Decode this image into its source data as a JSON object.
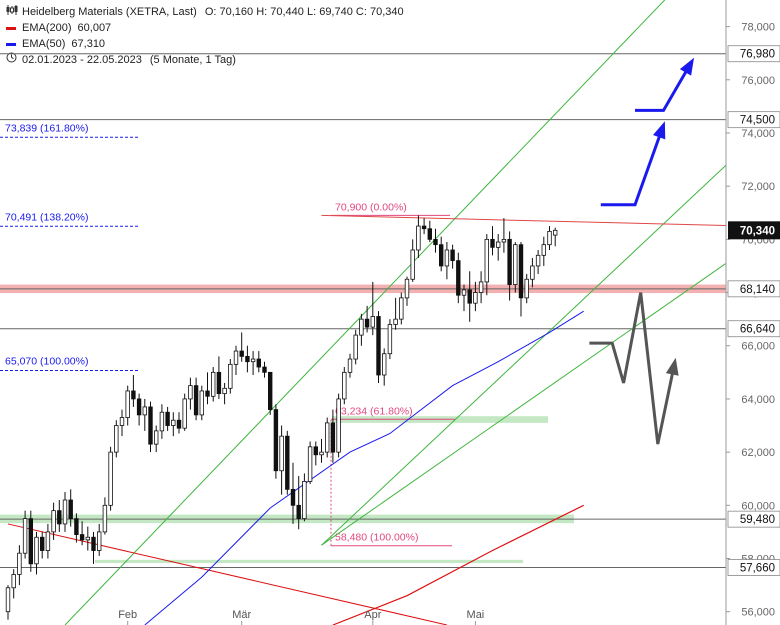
{
  "legend": {
    "instrument": "Heidelberg Materials (XETRA, Last)",
    "ohlc": "O: 70,160  H: 70,440  L: 69,740  C: 70,340",
    "ema200": {
      "label": "EMA(200)",
      "value": "60,007",
      "color": "#dd1111"
    },
    "ema50": {
      "label": "EMA(50)",
      "value": "67,310",
      "color": "#1a1aee"
    },
    "period": "02.01.2023 - 22.05.2023",
    "period_note": "(5 Monate, 1 Tag)"
  },
  "chart_data": {
    "type": "candlestick",
    "ylim": [
      55.5,
      79
    ],
    "yticks": [
      56,
      58,
      60,
      62,
      64,
      66,
      68,
      70,
      72,
      74,
      76,
      78
    ],
    "ytick_labels": [
      "56,000",
      "58,000",
      "60,000",
      "62,000",
      "64,000",
      "66,000",
      "68,000",
      "70,000",
      "72,000",
      "74,000",
      "76,000",
      "78,000"
    ],
    "xlabels": [
      {
        "label": "Feb",
        "day": 21
      },
      {
        "label": "Mär",
        "day": 41
      },
      {
        "label": "Apr",
        "day": 64
      },
      {
        "label": "Mai",
        "day": 82
      }
    ],
    "last_price": {
      "value": 70.34,
      "label": "70,340"
    },
    "candles": [
      {
        "o": 56.0,
        "h": 57.0,
        "l": 55.7,
        "c": 56.9
      },
      {
        "o": 56.9,
        "h": 57.6,
        "l": 56.5,
        "c": 57.4
      },
      {
        "o": 57.4,
        "h": 58.5,
        "l": 57.0,
        "c": 58.2
      },
      {
        "o": 58.2,
        "h": 59.8,
        "l": 58.0,
        "c": 59.5
      },
      {
        "o": 59.5,
        "h": 59.8,
        "l": 57.5,
        "c": 57.8
      },
      {
        "o": 57.8,
        "h": 59.0,
        "l": 57.4,
        "c": 58.8
      },
      {
        "o": 58.8,
        "h": 59.0,
        "l": 58.0,
        "c": 58.3
      },
      {
        "o": 58.3,
        "h": 59.3,
        "l": 58.0,
        "c": 59.0
      },
      {
        "o": 59.0,
        "h": 60.1,
        "l": 58.7,
        "c": 59.8
      },
      {
        "o": 59.8,
        "h": 60.2,
        "l": 59.0,
        "c": 59.3
      },
      {
        "o": 59.3,
        "h": 60.5,
        "l": 59.0,
        "c": 60.2
      },
      {
        "o": 60.2,
        "h": 60.6,
        "l": 59.2,
        "c": 59.5
      },
      {
        "o": 59.5,
        "h": 59.7,
        "l": 58.6,
        "c": 58.9
      },
      {
        "o": 58.9,
        "h": 59.4,
        "l": 58.5,
        "c": 58.7
      },
      {
        "o": 58.7,
        "h": 59.2,
        "l": 58.3,
        "c": 58.8
      },
      {
        "o": 58.8,
        "h": 59.0,
        "l": 57.8,
        "c": 58.3
      },
      {
        "o": 58.3,
        "h": 59.3,
        "l": 58.1,
        "c": 59.0
      },
      {
        "o": 59.0,
        "h": 60.3,
        "l": 58.9,
        "c": 60.0
      },
      {
        "o": 60.0,
        "h": 62.2,
        "l": 59.8,
        "c": 62.0
      },
      {
        "o": 62.0,
        "h": 63.2,
        "l": 61.8,
        "c": 63.0
      },
      {
        "o": 63.0,
        "h": 63.6,
        "l": 62.6,
        "c": 63.3
      },
      {
        "o": 63.3,
        "h": 64.5,
        "l": 63.0,
        "c": 64.3
      },
      {
        "o": 64.3,
        "h": 64.9,
        "l": 63.7,
        "c": 64.0
      },
      {
        "o": 64.0,
        "h": 64.2,
        "l": 63.0,
        "c": 63.4
      },
      {
        "o": 63.4,
        "h": 64.0,
        "l": 62.8,
        "c": 63.7
      },
      {
        "o": 63.7,
        "h": 63.9,
        "l": 62.0,
        "c": 62.3
      },
      {
        "o": 62.3,
        "h": 63.0,
        "l": 62.0,
        "c": 62.8
      },
      {
        "o": 62.8,
        "h": 63.8,
        "l": 62.5,
        "c": 63.5
      },
      {
        "o": 63.5,
        "h": 63.7,
        "l": 62.8,
        "c": 63.0
      },
      {
        "o": 63.0,
        "h": 63.5,
        "l": 62.6,
        "c": 63.2
      },
      {
        "o": 63.2,
        "h": 63.5,
        "l": 62.7,
        "c": 62.9
      },
      {
        "o": 62.9,
        "h": 64.2,
        "l": 62.8,
        "c": 64.0
      },
      {
        "o": 64.0,
        "h": 64.8,
        "l": 63.6,
        "c": 64.5
      },
      {
        "o": 64.5,
        "h": 64.8,
        "l": 63.2,
        "c": 63.4
      },
      {
        "o": 63.4,
        "h": 64.5,
        "l": 63.2,
        "c": 64.3
      },
      {
        "o": 64.3,
        "h": 65.0,
        "l": 63.8,
        "c": 64.1
      },
      {
        "o": 64.1,
        "h": 65.2,
        "l": 63.9,
        "c": 65.0
      },
      {
        "o": 65.0,
        "h": 65.6,
        "l": 64.0,
        "c": 64.2
      },
      {
        "o": 64.2,
        "h": 64.6,
        "l": 63.8,
        "c": 64.4
      },
      {
        "o": 64.4,
        "h": 65.5,
        "l": 64.2,
        "c": 65.3
      },
      {
        "o": 65.3,
        "h": 66.0,
        "l": 64.9,
        "c": 65.8
      },
      {
        "o": 65.8,
        "h": 66.5,
        "l": 65.4,
        "c": 65.6
      },
      {
        "o": 65.6,
        "h": 66.0,
        "l": 65.0,
        "c": 65.4
      },
      {
        "o": 65.4,
        "h": 65.8,
        "l": 64.9,
        "c": 65.5
      },
      {
        "o": 65.5,
        "h": 65.8,
        "l": 65.0,
        "c": 65.2
      },
      {
        "o": 65.2,
        "h": 65.4,
        "l": 64.8,
        "c": 65.0
      },
      {
        "o": 65.0,
        "h": 64.9,
        "l": 63.4,
        "c": 63.6
      },
      {
        "o": 63.6,
        "h": 63.8,
        "l": 61.0,
        "c": 61.3
      },
      {
        "o": 61.3,
        "h": 63.0,
        "l": 60.4,
        "c": 62.6
      },
      {
        "o": 62.6,
        "h": 62.8,
        "l": 60.4,
        "c": 60.6
      },
      {
        "o": 60.6,
        "h": 61.6,
        "l": 59.3,
        "c": 60.0
      },
      {
        "o": 60.0,
        "h": 61.1,
        "l": 59.1,
        "c": 59.5
      },
      {
        "o": 59.5,
        "h": 61.2,
        "l": 59.4,
        "c": 60.9
      },
      {
        "o": 60.9,
        "h": 62.4,
        "l": 60.8,
        "c": 62.2
      },
      {
        "o": 62.2,
        "h": 62.4,
        "l": 61.5,
        "c": 61.9
      },
      {
        "o": 61.9,
        "h": 62.5,
        "l": 61.6,
        "c": 62.0
      },
      {
        "o": 62.0,
        "h": 63.3,
        "l": 61.8,
        "c": 63.1
      },
      {
        "o": 63.1,
        "h": 63.6,
        "l": 61.6,
        "c": 62.0
      },
      {
        "o": 62.0,
        "h": 64.2,
        "l": 61.8,
        "c": 64.0
      },
      {
        "o": 64.0,
        "h": 65.2,
        "l": 63.8,
        "c": 65.0
      },
      {
        "o": 65.0,
        "h": 65.7,
        "l": 64.8,
        "c": 65.5
      },
      {
        "o": 65.5,
        "h": 66.6,
        "l": 65.3,
        "c": 66.4
      },
      {
        "o": 66.4,
        "h": 67.2,
        "l": 66.0,
        "c": 67.0
      },
      {
        "o": 67.0,
        "h": 67.5,
        "l": 66.5,
        "c": 66.7
      },
      {
        "o": 66.7,
        "h": 68.4,
        "l": 66.4,
        "c": 67.1
      },
      {
        "o": 67.1,
        "h": 67.3,
        "l": 64.6,
        "c": 64.9
      },
      {
        "o": 64.9,
        "h": 65.9,
        "l": 64.5,
        "c": 65.7
      },
      {
        "o": 65.7,
        "h": 67.0,
        "l": 65.5,
        "c": 66.8
      },
      {
        "o": 66.8,
        "h": 67.8,
        "l": 66.6,
        "c": 67.0
      },
      {
        "o": 67.0,
        "h": 68.0,
        "l": 66.8,
        "c": 67.8
      },
      {
        "o": 67.8,
        "h": 68.6,
        "l": 67.5,
        "c": 68.5
      },
      {
        "o": 68.5,
        "h": 70.0,
        "l": 68.4,
        "c": 69.6
      },
      {
        "o": 69.6,
        "h": 70.9,
        "l": 69.3,
        "c": 70.5
      },
      {
        "o": 70.5,
        "h": 70.8,
        "l": 70.2,
        "c": 70.4
      },
      {
        "o": 70.4,
        "h": 70.7,
        "l": 69.9,
        "c": 70.0
      },
      {
        "o": 70.0,
        "h": 70.4,
        "l": 69.5,
        "c": 69.8
      },
      {
        "o": 69.8,
        "h": 70.1,
        "l": 68.8,
        "c": 69.0
      },
      {
        "o": 69.0,
        "h": 69.9,
        "l": 68.5,
        "c": 69.6
      },
      {
        "o": 69.6,
        "h": 69.8,
        "l": 68.9,
        "c": 69.2
      },
      {
        "o": 69.2,
        "h": 69.5,
        "l": 67.6,
        "c": 67.9
      },
      {
        "o": 67.9,
        "h": 68.3,
        "l": 67.3,
        "c": 68.1
      },
      {
        "o": 68.1,
        "h": 68.8,
        "l": 66.9,
        "c": 67.6
      },
      {
        "o": 67.6,
        "h": 68.4,
        "l": 67.3,
        "c": 68.0
      },
      {
        "o": 68.0,
        "h": 68.8,
        "l": 67.6,
        "c": 68.4
      },
      {
        "o": 68.4,
        "h": 70.2,
        "l": 67.9,
        "c": 70.0
      },
      {
        "o": 70.0,
        "h": 70.5,
        "l": 69.4,
        "c": 69.7
      },
      {
        "o": 69.7,
        "h": 70.2,
        "l": 69.2,
        "c": 69.9
      },
      {
        "o": 69.9,
        "h": 70.8,
        "l": 69.5,
        "c": 70.0
      },
      {
        "o": 70.0,
        "h": 70.3,
        "l": 67.7,
        "c": 68.3
      },
      {
        "o": 68.3,
        "h": 69.9,
        "l": 68.0,
        "c": 69.8
      },
      {
        "o": 69.8,
        "h": 69.9,
        "l": 67.1,
        "c": 67.8
      },
      {
        "o": 67.8,
        "h": 68.7,
        "l": 67.6,
        "c": 68.5
      },
      {
        "o": 68.5,
        "h": 69.3,
        "l": 68.2,
        "c": 69.0
      },
      {
        "o": 69.0,
        "h": 69.6,
        "l": 68.7,
        "c": 69.4
      },
      {
        "o": 69.4,
        "h": 70.1,
        "l": 69.0,
        "c": 69.8
      },
      {
        "o": 69.8,
        "h": 70.5,
        "l": 69.6,
        "c": 70.3
      },
      {
        "o": 70.16,
        "h": 70.44,
        "l": 69.74,
        "c": 70.34
      }
    ],
    "ema200": [
      {
        "day": 57,
        "v": 55.5
      },
      {
        "day": 70,
        "v": 56.6
      },
      {
        "day": 85,
        "v": 58.3
      },
      {
        "day": 101,
        "v": 60.0
      }
    ],
    "ema50": [
      {
        "day": 24,
        "v": 55.5
      },
      {
        "day": 34,
        "v": 57.3
      },
      {
        "day": 46,
        "v": 59.9
      },
      {
        "day": 60,
        "v": 62.0
      },
      {
        "day": 67,
        "v": 62.7
      },
      {
        "day": 78,
        "v": 64.5
      },
      {
        "day": 86,
        "v": 65.4
      },
      {
        "day": 95,
        "v": 66.5
      },
      {
        "day": 101,
        "v": 67.3
      }
    ],
    "horizontal_levels": [
      {
        "value": 76.98,
        "label": "76,980"
      },
      {
        "value": 74.5,
        "label": "74,500"
      },
      {
        "value": 68.14,
        "label": "68,140"
      },
      {
        "value": 66.64,
        "label": "66,640"
      },
      {
        "value": 59.48,
        "label": "59,480"
      },
      {
        "value": 57.66,
        "label": "57,660"
      }
    ],
    "fib_extension_labels": [
      {
        "value": 73.839,
        "label": "73,839 (161.80%)"
      },
      {
        "value": 70.491,
        "label": "70,491 (138.20%)"
      },
      {
        "value": 65.07,
        "label": "65,070 (100.00%)"
      }
    ],
    "fib_retracement_labels": [
      {
        "value": 70.9,
        "label": "70,900 (0.00%)"
      },
      {
        "value": 63.234,
        "label": "63,234 (61.80%)"
      },
      {
        "value": 58.48,
        "label": "58,480 (100.00%)"
      }
    ],
    "support_zones": [
      {
        "from": 67.98,
        "to": 68.3,
        "color": "#f2a3a3"
      },
      {
        "from": 59.33,
        "to": 59.65,
        "color": "#b8e4b8"
      },
      {
        "from": 63.1,
        "to": 63.35,
        "color": "#b8e4b8"
      },
      {
        "from": 57.83,
        "to": 57.95,
        "color": "#b8e4b8"
      }
    ],
    "trend_lines": [
      {
        "color": "#3fb53f",
        "from": {
          "day": 10,
          "v": 55.5
        },
        "to": {
          "day": 117,
          "v": 79.4
        }
      },
      {
        "color": "#3fb53f",
        "from": {
          "day": 55,
          "v": 58.5
        },
        "to": {
          "day": 130,
          "v": 73.6
        }
      },
      {
        "color": "#3fb53f",
        "from": {
          "day": 55,
          "v": 58.5
        },
        "to": {
          "day": 130,
          "v": 69.7
        }
      },
      {
        "color": "#dd1111",
        "from": {
          "day": 0,
          "v": 59.3
        },
        "to": {
          "day": 77,
          "v": 55.5
        }
      },
      {
        "color": "#e04848",
        "from": {
          "day": 55,
          "v": 70.9
        },
        "to": {
          "day": 130,
          "v": 70.5
        }
      }
    ],
    "projection_bullish": [
      [
        {
          "day": 104,
          "v": 71.3
        },
        {
          "day": 110,
          "v": 71.3
        },
        {
          "day": 115,
          "v": 74.3
        }
      ],
      [
        {
          "day": 110,
          "v": 74.85
        },
        {
          "day": 115,
          "v": 74.85
        },
        {
          "day": 120,
          "v": 76.7
        }
      ]
    ],
    "projection_bearish": [
      {
        "day": 102,
        "v": 66.1
      },
      {
        "day": 106,
        "v": 66.1
      },
      {
        "day": 108,
        "v": 64.6
      },
      {
        "day": 111,
        "v": 68.0
      },
      {
        "day": 114,
        "v": 62.3
      },
      {
        "day": 117,
        "v": 65.4
      }
    ]
  }
}
